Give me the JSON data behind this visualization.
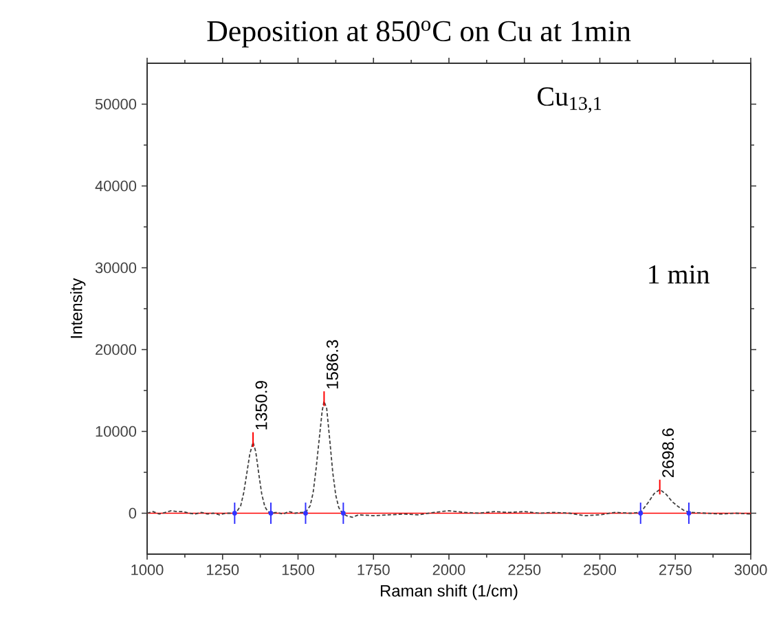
{
  "chart_data": {
    "type": "line",
    "title": "Deposition at 850$^{o}$C on Cu at 1min",
    "xlabel": "Raman shift (1/cm)",
    "ylabel": "Intensity",
    "xlim": [
      1000,
      3000
    ],
    "xticks": [
      1000,
      1250,
      1500,
      1750,
      2000,
      2250,
      2500,
      2750,
      3000
    ],
    "ylim": [
      -5000,
      55000
    ],
    "yticks": [
      0,
      10000,
      20000,
      30000,
      40000,
      50000
    ],
    "grid": false,
    "series": [
      {
        "color": "#404040",
        "line_style": "dashed",
        "marker": "none",
        "x": [
          1000,
          1020,
          1040,
          1060,
          1080,
          1100,
          1120,
          1140,
          1160,
          1180,
          1200,
          1220,
          1240,
          1260,
          1280,
          1295,
          1310,
          1320,
          1330,
          1340,
          1351,
          1360,
          1370,
          1380,
          1390,
          1400,
          1410,
          1430,
          1450,
          1470,
          1490,
          1510,
          1525,
          1540,
          1550,
          1560,
          1570,
          1580,
          1586,
          1595,
          1605,
          1615,
          1625,
          1635,
          1645,
          1660,
          1680,
          1700,
          1750,
          1800,
          1850,
          1900,
          1950,
          2000,
          2050,
          2100,
          2150,
          2200,
          2250,
          2300,
          2350,
          2400,
          2450,
          2500,
          2550,
          2600,
          2635,
          2660,
          2680,
          2699,
          2720,
          2740,
          2760,
          2780,
          2800,
          2850,
          2900,
          2950,
          3000
        ],
        "values": [
          0,
          200,
          -100,
          100,
          300,
          200,
          200,
          0,
          -100,
          100,
          -100,
          0,
          -200,
          0,
          0,
          100,
          900,
          2500,
          4800,
          7200,
          8700,
          7500,
          4800,
          2300,
          800,
          200,
          0,
          100,
          -100,
          200,
          0,
          100,
          100,
          900,
          2500,
          5500,
          9000,
          12500,
          13700,
          12800,
          9000,
          5000,
          2200,
          700,
          100,
          -300,
          -500,
          -200,
          -300,
          -200,
          -100,
          -200,
          100,
          300,
          100,
          0,
          200,
          100,
          200,
          0,
          100,
          0,
          -300,
          -200,
          100,
          0,
          100,
          1300,
          2400,
          2900,
          2300,
          1400,
          800,
          300,
          100,
          0,
          -100,
          0,
          -100
        ]
      },
      {
        "type": "scatter",
        "color": "#3333ff",
        "marker": "circle",
        "x": [
          1290,
          1410,
          1525,
          1650,
          2635,
          2795
        ],
        "values": [
          0,
          0,
          0,
          0,
          0,
          0
        ],
        "errors": [
          1300,
          1300,
          1300,
          1300,
          1300,
          1300
        ]
      }
    ],
    "ref_lines": [
      {
        "axis": "y",
        "value": 0,
        "color": "#ff0000"
      }
    ],
    "annotations": [
      {
        "text": "1350.9",
        "x": 1350.9,
        "y": 8700
      },
      {
        "text": "1586.3",
        "x": 1586.3,
        "y": 13700
      },
      {
        "text": "2698.6",
        "x": 2698.6,
        "y": 2900
      },
      "Cu$_{13,1}$",
      "1 min"
    ]
  }
}
